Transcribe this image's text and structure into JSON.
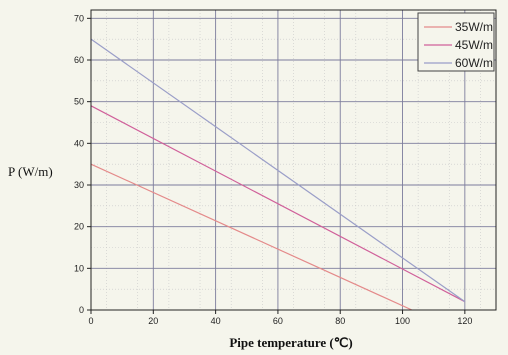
{
  "chart_data": {
    "type": "line",
    "xlabel": "Pipe temperature (℃)",
    "ylabel": "P (W/m)",
    "xlim": [
      0,
      130
    ],
    "ylim": [
      0,
      72
    ],
    "x_ticks": [
      0,
      20,
      40,
      60,
      80,
      100,
      120
    ],
    "y_ticks": [
      0,
      10,
      20,
      30,
      40,
      50,
      60,
      70
    ],
    "grid": true,
    "legend_position": "top-right",
    "series": [
      {
        "name": "35W/m",
        "color": "#e48a8a",
        "x": [
          0,
          103
        ],
        "y": [
          35,
          0
        ]
      },
      {
        "name": "45W/m",
        "color": "#d0609a",
        "x": [
          0,
          120
        ],
        "y": [
          49,
          2
        ]
      },
      {
        "name": "60W/m",
        "color": "#9a9ec8",
        "x": [
          0,
          120
        ],
        "y": [
          65,
          2
        ]
      }
    ]
  }
}
